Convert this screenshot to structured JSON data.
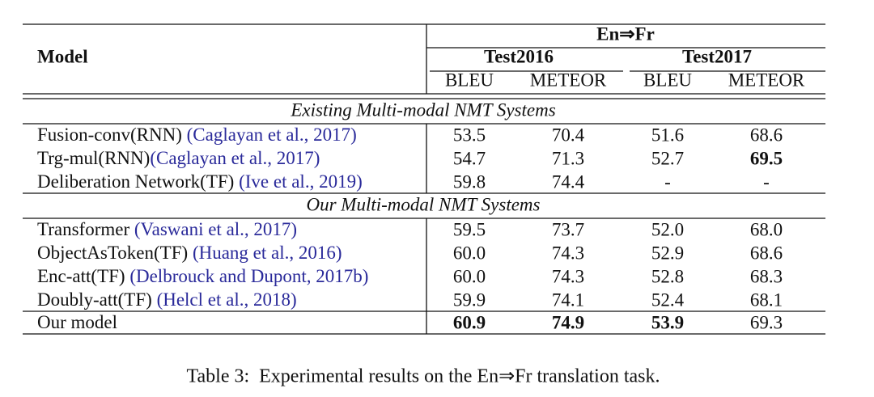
{
  "header": {
    "model": "Model",
    "pair": "En⇒Fr",
    "test_sets": [
      {
        "name": "Test2016",
        "metrics": [
          "BLEU",
          "METEOR"
        ]
      },
      {
        "name": "Test2017",
        "metrics": [
          "BLEU",
          "METEOR"
        ]
      }
    ]
  },
  "sections": [
    {
      "title": "Existing Multi-modal NMT Systems",
      "rows": [
        {
          "model": "Fusion-conv(RNN) ",
          "citation": "(Caglayan et al., 2017)",
          "values": [
            "53.5",
            "70.4",
            "51.6",
            "68.6"
          ],
          "bold": []
        },
        {
          "model": "Trg-mul(RNN)",
          "citation": "(Caglayan et al., 2017)",
          "values": [
            "54.7",
            "71.3",
            "52.7",
            "69.5"
          ],
          "bold": [
            3
          ]
        },
        {
          "model": "Deliberation Network(TF) ",
          "citation": "(Ive et al., 2019)",
          "values": [
            "59.8",
            "74.4",
            "-",
            "-"
          ],
          "bold": []
        }
      ]
    },
    {
      "title": "Our Multi-modal NMT Systems",
      "rows": [
        {
          "model": "Transformer ",
          "citation": "(Vaswani et al., 2017)",
          "values": [
            "59.5",
            "73.7",
            "52.0",
            "68.0"
          ],
          "bold": []
        },
        {
          "model": "ObjectAsToken(TF) ",
          "citation": "(Huang et al., 2016)",
          "values": [
            "60.0",
            "74.3",
            "52.9",
            "68.6"
          ],
          "bold": []
        },
        {
          "model": "Enc-att(TF) ",
          "citation": "(Delbrouck and Dupont, 2017b)",
          "values": [
            "60.0",
            "74.3",
            "52.8",
            "68.3"
          ],
          "bold": []
        },
        {
          "model": "Doubly-att(TF) ",
          "citation": "(Helcl et al., 2018)",
          "values": [
            "59.9",
            "74.1",
            "52.4",
            "68.1"
          ],
          "bold": []
        }
      ]
    },
    {
      "rows": [
        {
          "model": "Our model",
          "values": [
            "60.9",
            "74.9",
            "53.9",
            "69.3"
          ],
          "bold": [
            0,
            1,
            2
          ]
        }
      ]
    }
  ],
  "caption": "Table 3:  Experimental results on the En⇒Fr translation task."
}
